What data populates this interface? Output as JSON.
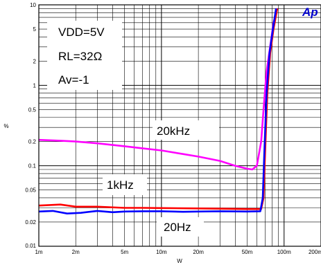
{
  "chart_data": {
    "type": "line",
    "xlabel": "W",
    "ylabel": "%",
    "xscale": "log",
    "yscale": "log",
    "xlim": [
      0.001,
      0.2
    ],
    "ylim": [
      0.01,
      10
    ],
    "grid": true,
    "x_ticks": [
      "1m",
      "2m",
      "5m",
      "10m",
      "20m",
      "50m",
      "100m",
      "200m"
    ],
    "y_ticks": [
      "0.01",
      "0.02",
      "0.05",
      "0.1",
      "0.2",
      "0.5",
      "1",
      "2",
      "5",
      "10"
    ],
    "conditions": [
      "VDD=5V",
      "RL=32Ω",
      "Av=-1"
    ],
    "series": [
      {
        "name": "20kHz",
        "color": "#ff00ff",
        "points": [
          [
            0.001,
            0.21
          ],
          [
            0.0015,
            0.205
          ],
          [
            0.002,
            0.2
          ],
          [
            0.003,
            0.19
          ],
          [
            0.005,
            0.175
          ],
          [
            0.007,
            0.165
          ],
          [
            0.01,
            0.155
          ],
          [
            0.015,
            0.14
          ],
          [
            0.02,
            0.13
          ],
          [
            0.03,
            0.115
          ],
          [
            0.04,
            0.1
          ],
          [
            0.05,
            0.092
          ],
          [
            0.055,
            0.09
          ],
          [
            0.06,
            0.1
          ],
          [
            0.065,
            0.2
          ],
          [
            0.068,
            0.5
          ],
          [
            0.072,
            1.5
          ],
          [
            0.078,
            3.5
          ],
          [
            0.082,
            6
          ],
          [
            0.088,
            9
          ]
        ]
      },
      {
        "name": "1kHz",
        "color": "#ff0000",
        "points": [
          [
            0.001,
            0.032
          ],
          [
            0.0015,
            0.033
          ],
          [
            0.002,
            0.031
          ],
          [
            0.003,
            0.031
          ],
          [
            0.005,
            0.03
          ],
          [
            0.007,
            0.03
          ],
          [
            0.01,
            0.0298
          ],
          [
            0.02,
            0.0295
          ],
          [
            0.03,
            0.0293
          ],
          [
            0.05,
            0.029
          ],
          [
            0.065,
            0.029
          ],
          [
            0.068,
            0.04
          ],
          [
            0.07,
            0.15
          ],
          [
            0.073,
            0.8
          ],
          [
            0.077,
            2.5
          ],
          [
            0.082,
            5
          ],
          [
            0.088,
            9
          ]
        ]
      },
      {
        "name": "20Hz",
        "color": "#0000ff",
        "points": [
          [
            0.001,
            0.027
          ],
          [
            0.0013,
            0.0275
          ],
          [
            0.0017,
            0.0255
          ],
          [
            0.0022,
            0.026
          ],
          [
            0.003,
            0.0275
          ],
          [
            0.004,
            0.0265
          ],
          [
            0.005,
            0.027
          ],
          [
            0.007,
            0.0272
          ],
          [
            0.01,
            0.0272
          ],
          [
            0.015,
            0.0268
          ],
          [
            0.02,
            0.027
          ],
          [
            0.03,
            0.0272
          ],
          [
            0.05,
            0.027
          ],
          [
            0.064,
            0.0272
          ],
          [
            0.067,
            0.04
          ],
          [
            0.069,
            0.15
          ],
          [
            0.072,
            0.8
          ],
          [
            0.076,
            2.5
          ],
          [
            0.081,
            5
          ],
          [
            0.086,
            9
          ]
        ]
      }
    ],
    "annotations": [
      "20kHz",
      "1kHz",
      "20Hz"
    ],
    "logo_text": "Ap"
  }
}
